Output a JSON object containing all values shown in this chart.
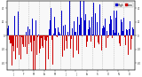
{
  "bg_color": "#ffffff",
  "plot_bg_color": "#f8f8f8",
  "grid_color": "#aaaaaa",
  "bar_color_high": "#0000cc",
  "bar_color_low": "#cc0000",
  "legend_high_label": "High",
  "legend_low_label": "Low",
  "ylim": [
    -50,
    50
  ],
  "n_points": 365,
  "seed": 42,
  "tick_color": "#222222",
  "axis_color": "#222222",
  "right_axis_ticks": [
    40,
    20,
    0,
    -20,
    -40
  ],
  "right_axis_labels": [
    "40",
    "20",
    "0",
    "-20",
    "-40"
  ],
  "n_gridlines": 12
}
